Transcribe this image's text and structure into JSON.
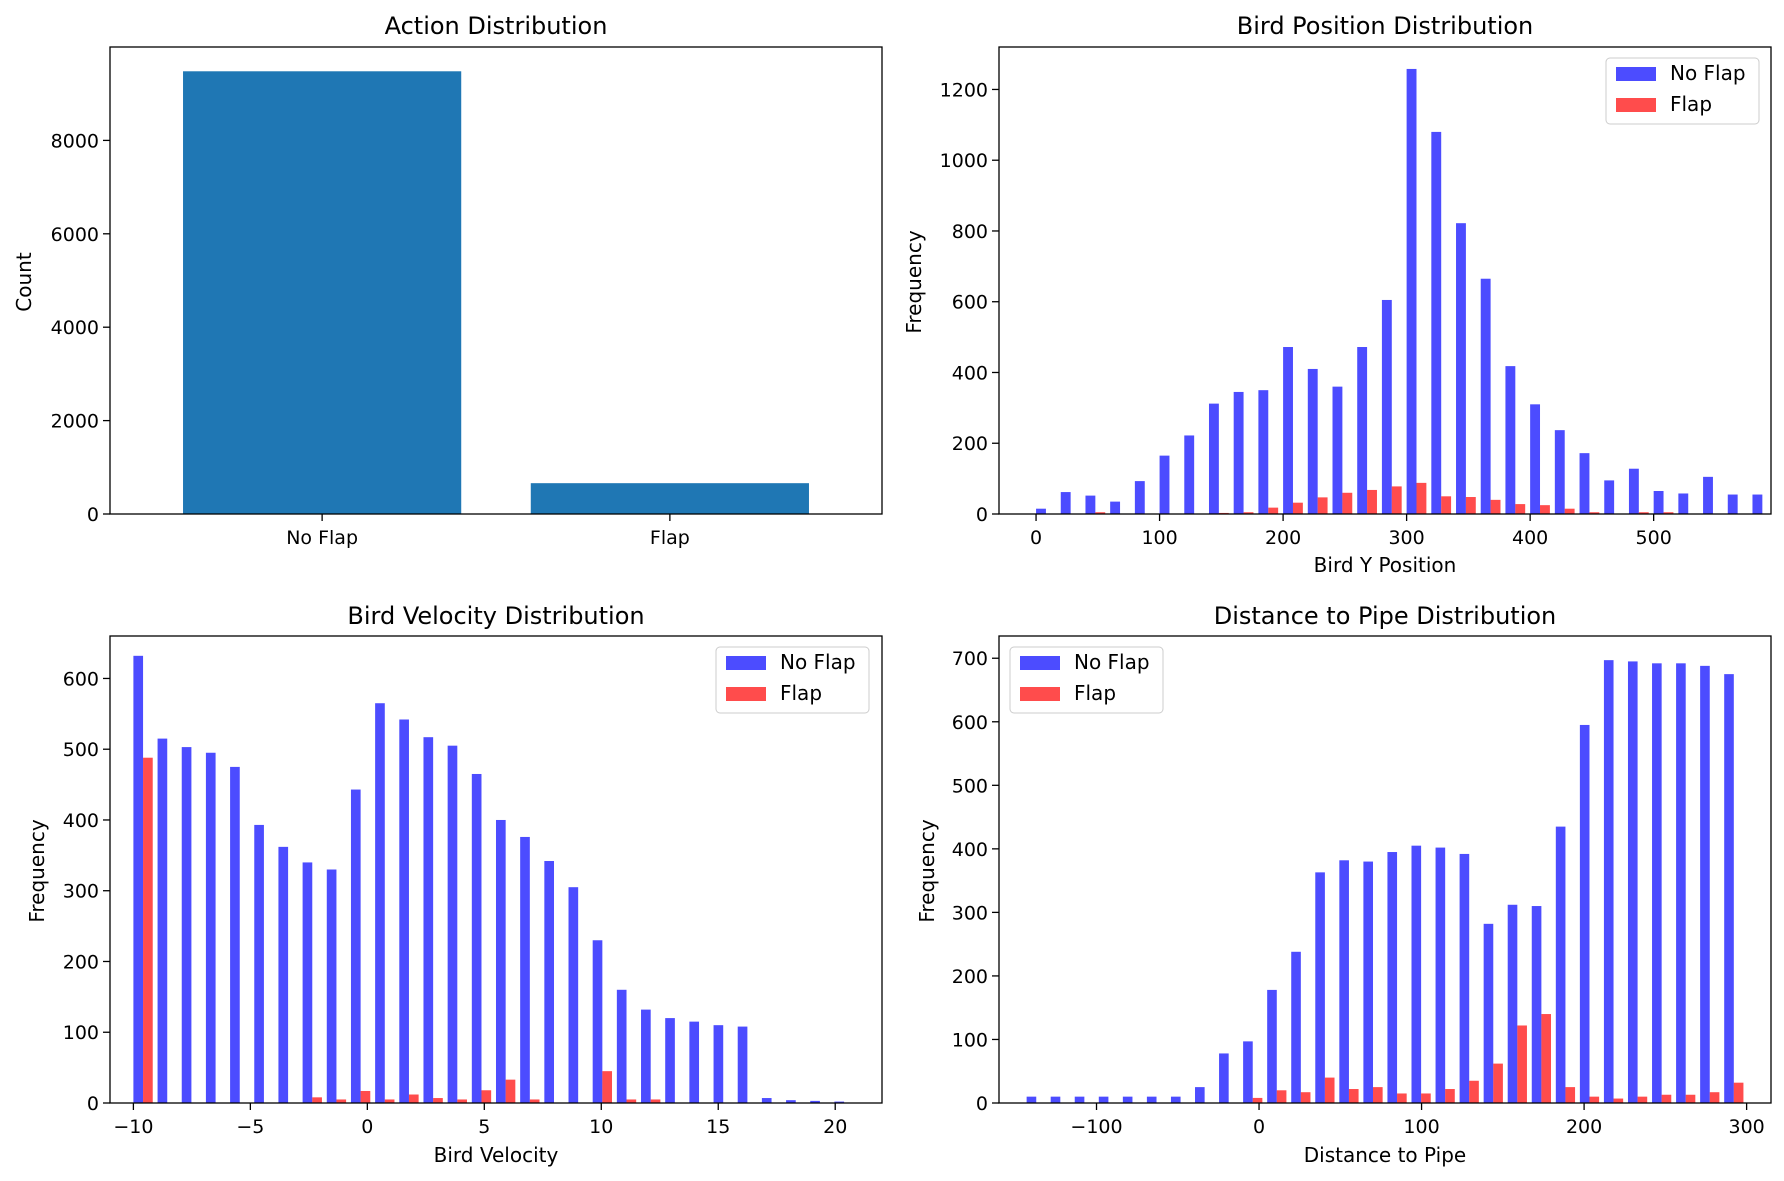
{
  "chart_data": [
    {
      "type": "bar",
      "title": "Action Distribution",
      "xlabel": "",
      "ylabel": "Count",
      "ylim": [
        0,
        10000
      ],
      "yticks": [
        0,
        2000,
        4000,
        6000,
        8000
      ],
      "categories": [
        "No Flap",
        "Flap"
      ],
      "values": [
        9480,
        660
      ],
      "color": "#1f77b4",
      "grid": false
    },
    {
      "type": "bar",
      "title": "Bird Position Distribution",
      "xlabel": "Bird Y Position",
      "ylabel": "Frequency",
      "xlim": [
        -30,
        595
      ],
      "ylim": [
        0,
        1320
      ],
      "xticks": [
        0,
        100,
        200,
        300,
        400,
        500
      ],
      "yticks": [
        0,
        200,
        400,
        600,
        800,
        1000,
        1200
      ],
      "bin_start": 0,
      "bin_width": 20,
      "legend": "top-right",
      "grid": false,
      "series": [
        {
          "name": "No Flap",
          "color": "#0000ff",
          "values": [
            15,
            62,
            52,
            35,
            93,
            165,
            222,
            312,
            345,
            350,
            472,
            410,
            360,
            472,
            605,
            1258,
            1080,
            822,
            665,
            418,
            310,
            237,
            172,
            95,
            128,
            65,
            58,
            105,
            55,
            55
          ]
        },
        {
          "name": "Flap",
          "color": "#ff0000",
          "values": [
            0,
            0,
            5,
            0,
            0,
            0,
            0,
            3,
            5,
            18,
            32,
            47,
            60,
            68,
            78,
            88,
            50,
            48,
            40,
            28,
            25,
            15,
            5,
            0,
            5,
            5,
            0,
            0,
            0,
            0
          ]
        }
      ]
    },
    {
      "type": "bar",
      "title": "Bird Velocity Distribution",
      "xlabel": "Bird Velocity",
      "ylabel": "Frequency",
      "xlim": [
        -11,
        22
      ],
      "ylim": [
        0,
        660
      ],
      "xticks": [
        -10,
        -5,
        0,
        5,
        10,
        15,
        20
      ],
      "xtick_labels": [
        "−10",
        "−5",
        "0",
        "5",
        "10",
        "15",
        "20"
      ],
      "yticks": [
        0,
        100,
        200,
        300,
        400,
        500,
        600
      ],
      "bin_start": -10,
      "bin_width": 1.0333,
      "legend": "top-right",
      "grid": false,
      "series": [
        {
          "name": "No Flap",
          "color": "#0000ff",
          "values": [
            632,
            515,
            503,
            495,
            475,
            393,
            362,
            340,
            330,
            443,
            565,
            542,
            517,
            505,
            465,
            400,
            376,
            342,
            305,
            230,
            160,
            132,
            120,
            115,
            110,
            108,
            7,
            4,
            3,
            2
          ]
        },
        {
          "name": "Flap",
          "color": "#ff0000",
          "values": [
            488,
            0,
            0,
            0,
            0,
            0,
            0,
            8,
            5,
            17,
            5,
            12,
            7,
            5,
            18,
            33,
            5,
            0,
            0,
            45,
            5,
            5,
            0,
            0,
            0,
            0,
            0,
            0,
            0,
            0
          ]
        }
      ]
    },
    {
      "type": "bar",
      "title": "Distance to Pipe Distribution",
      "xlabel": "Distance to Pipe",
      "ylabel": "Frequency",
      "xlim": [
        -160,
        315
      ],
      "ylim": [
        0,
        735
      ],
      "xticks": [
        -100,
        0,
        100,
        200,
        300
      ],
      "xtick_labels": [
        "−100",
        "0",
        "100",
        "200",
        "300"
      ],
      "yticks": [
        0,
        100,
        200,
        300,
        400,
        500,
        600,
        700
      ],
      "bin_start": -143,
      "bin_width": 14.8,
      "legend": "top-left",
      "grid": false,
      "series": [
        {
          "name": "No Flap",
          "color": "#0000ff",
          "values": [
            10,
            10,
            10,
            10,
            10,
            10,
            10,
            25,
            78,
            97,
            178,
            238,
            363,
            382,
            380,
            395,
            405,
            402,
            392,
            282,
            312,
            310,
            435,
            595,
            697,
            695,
            692,
            692,
            688,
            675
          ]
        },
        {
          "name": "Flap",
          "color": "#ff0000",
          "values": [
            0,
            0,
            0,
            0,
            0,
            0,
            0,
            0,
            0,
            8,
            20,
            17,
            40,
            22,
            25,
            15,
            15,
            22,
            35,
            62,
            122,
            140,
            25,
            10,
            7,
            10,
            13,
            13,
            17,
            32
          ]
        }
      ]
    }
  ]
}
